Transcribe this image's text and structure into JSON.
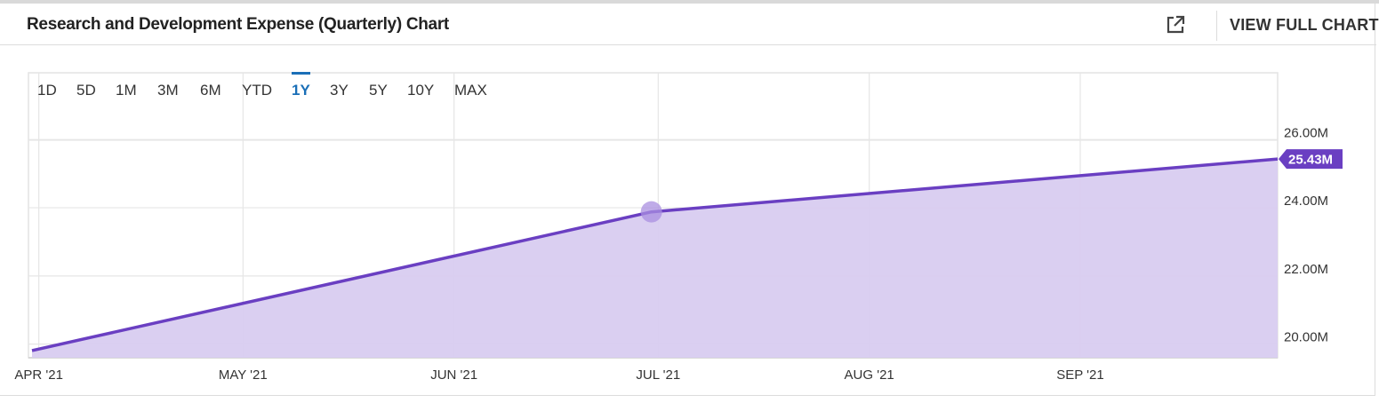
{
  "header": {
    "title": "Research and Development Expense (Quarterly) Chart",
    "external_icon": "external-link-icon",
    "view_full_label": "VIEW FULL CHART"
  },
  "ranges": [
    {
      "label": "1D",
      "active": false
    },
    {
      "label": "5D",
      "active": false
    },
    {
      "label": "1M",
      "active": false
    },
    {
      "label": "3M",
      "active": false
    },
    {
      "label": "6M",
      "active": false
    },
    {
      "label": "YTD",
      "active": false
    },
    {
      "label": "1Y",
      "active": true
    },
    {
      "label": "3Y",
      "active": false
    },
    {
      "label": "5Y",
      "active": false
    },
    {
      "label": "10Y",
      "active": false
    },
    {
      "label": "MAX",
      "active": false
    }
  ],
  "colors": {
    "line": "#6a3fc2",
    "area": "#d8ccf0",
    "active_range": "#1a6fb7",
    "grid": "#e6e6e6"
  },
  "chart_data": {
    "type": "area",
    "x": [
      "2021-03-31",
      "2021-06-30",
      "2021-09-30"
    ],
    "values": [
      19.81,
      23.88,
      25.43
    ],
    "unit": "M",
    "x_ticks": [
      {
        "date": "2021-04-01",
        "label": "APR '21"
      },
      {
        "date": "2021-05-01",
        "label": "MAY '21"
      },
      {
        "date": "2021-06-01",
        "label": "JUN '21"
      },
      {
        "date": "2021-07-01",
        "label": "JUL '21"
      },
      {
        "date": "2021-08-01",
        "label": "AUG '21"
      },
      {
        "date": "2021-09-01",
        "label": "SEP '21"
      }
    ],
    "y_ticks": [
      {
        "value": 20,
        "label": "20.00M"
      },
      {
        "value": 22,
        "label": "22.00M"
      },
      {
        "value": 24,
        "label": "24.00M"
      },
      {
        "value": 26,
        "label": "26.00M"
      }
    ],
    "ylim": [
      19.6,
      27.96
    ],
    "xlim": [
      "2021-03-31",
      "2021-09-30"
    ],
    "highlighted_point": "2021-06-30",
    "last_value_label": "25.43M",
    "grid": true,
    "axis_side": "right"
  }
}
